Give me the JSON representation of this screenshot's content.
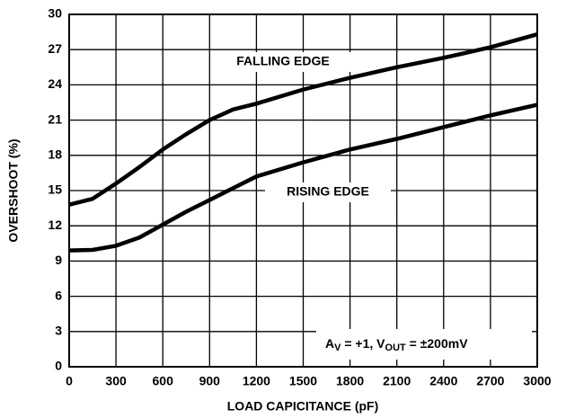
{
  "chart_data": {
    "type": "line",
    "xlabel": "LOAD CAPICITANCE (pF)",
    "ylabel": "OVERSHOOT (%)",
    "x": [
      0,
      150,
      300,
      450,
      600,
      750,
      900,
      1050,
      1200,
      1500,
      1800,
      2100,
      2400,
      2700,
      3000
    ],
    "series": [
      {
        "name": "FALLING EDGE",
        "color": "#000000",
        "values": [
          13.8,
          14.3,
          15.6,
          17.0,
          18.5,
          19.8,
          21.0,
          21.9,
          22.4,
          23.6,
          24.6,
          25.5,
          26.3,
          27.2,
          28.3
        ]
      },
      {
        "name": "RISING EDGE",
        "color": "#000000",
        "values": [
          9.9,
          9.95,
          10.3,
          11.0,
          12.1,
          13.2,
          14.2,
          15.2,
          16.2,
          17.4,
          18.5,
          19.4,
          20.4,
          21.4,
          22.3
        ]
      }
    ],
    "annotation_parts": [
      "A",
      "V",
      " = +1, V",
      "OUT",
      " = ±200mV"
    ],
    "xlim": [
      0,
      3000
    ],
    "xticks": [
      0,
      300,
      600,
      900,
      1200,
      1500,
      1800,
      2100,
      2400,
      2700,
      3000
    ],
    "ylim": [
      0,
      30
    ],
    "yticks": [
      0,
      3,
      6,
      9,
      12,
      15,
      18,
      21,
      24,
      27,
      30
    ],
    "grid": true
  }
}
